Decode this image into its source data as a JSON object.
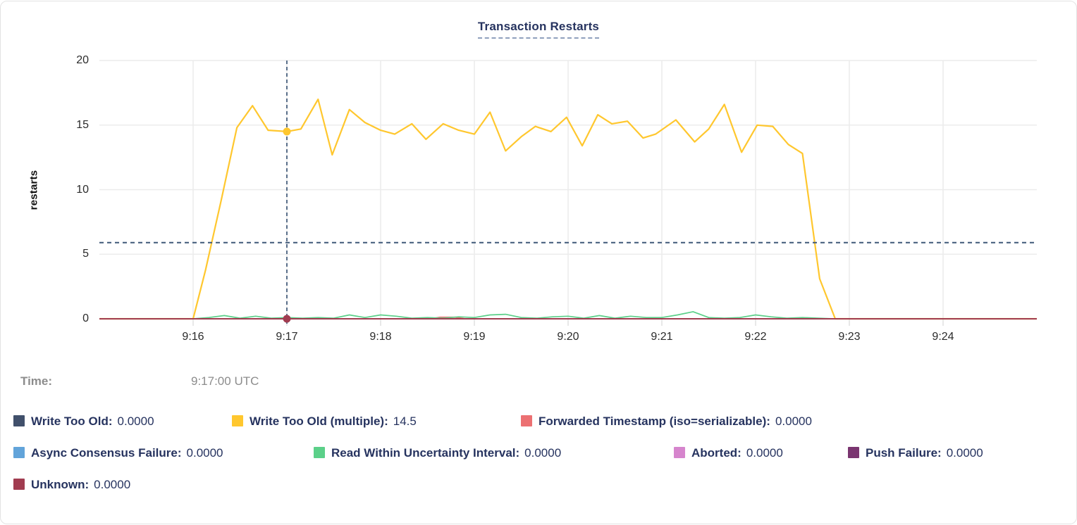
{
  "chart_data": {
    "type": "line",
    "title": "Transaction Restarts",
    "ylabel": "restarts",
    "ylim": [
      0,
      20
    ],
    "yticks": [
      0,
      5,
      10,
      15,
      20
    ],
    "x_domain": {
      "start": "9:15:00",
      "end": "9:25:00",
      "seconds": 600
    },
    "xticks": [
      {
        "s": 60,
        "label": "9:16"
      },
      {
        "s": 120,
        "label": "9:17"
      },
      {
        "s": 180,
        "label": "9:18"
      },
      {
        "s": 240,
        "label": "9:19"
      },
      {
        "s": 300,
        "label": "9:20"
      },
      {
        "s": 360,
        "label": "9:21"
      },
      {
        "s": 420,
        "label": "9:22"
      },
      {
        "s": 480,
        "label": "9:23"
      },
      {
        "s": 540,
        "label": "9:24"
      }
    ],
    "grid": true,
    "legend_position": "bottom",
    "series": [
      {
        "name": "Write Too Old",
        "color": "#41506b",
        "value_label": "0.0000",
        "width": 1.5,
        "points": [
          [
            0,
            0
          ],
          [
            600,
            0
          ]
        ]
      },
      {
        "name": "Write Too Old (multiple)",
        "color": "#ffc72e",
        "value_label": "14.5",
        "width": 2.2,
        "points": [
          [
            0,
            0
          ],
          [
            60,
            0
          ],
          [
            68,
            3.8
          ],
          [
            78,
            9.2
          ],
          [
            88,
            14.8
          ],
          [
            98,
            16.5
          ],
          [
            108,
            14.6
          ],
          [
            120,
            14.5
          ],
          [
            129,
            14.7
          ],
          [
            140,
            17.0
          ],
          [
            149,
            12.7
          ],
          [
            160,
            16.2
          ],
          [
            170,
            15.2
          ],
          [
            180,
            14.6
          ],
          [
            189,
            14.3
          ],
          [
            200,
            15.1
          ],
          [
            209,
            13.9
          ],
          [
            220,
            15.1
          ],
          [
            230,
            14.6
          ],
          [
            240,
            14.3
          ],
          [
            250,
            16.0
          ],
          [
            260,
            13.0
          ],
          [
            270,
            14.1
          ],
          [
            279,
            14.9
          ],
          [
            289,
            14.5
          ],
          [
            299,
            15.6
          ],
          [
            309,
            13.4
          ],
          [
            319,
            15.8
          ],
          [
            328,
            15.1
          ],
          [
            338,
            15.3
          ],
          [
            348,
            14.0
          ],
          [
            356,
            14.3
          ],
          [
            369,
            15.4
          ],
          [
            381,
            13.7
          ],
          [
            390,
            14.7
          ],
          [
            400,
            16.6
          ],
          [
            411,
            12.9
          ],
          [
            421,
            15.0
          ],
          [
            431,
            14.9
          ],
          [
            441,
            13.5
          ],
          [
            450,
            12.8
          ],
          [
            461,
            3.1
          ],
          [
            471,
            0
          ],
          [
            600,
            0
          ]
        ]
      },
      {
        "name": "Forwarded Timestamp (iso=serializable)",
        "color": "#ec7072",
        "value_label": "0.0000",
        "width": 1.8,
        "points": [
          [
            0,
            0
          ],
          [
            212,
            0
          ],
          [
            218,
            0.12
          ],
          [
            228,
            0.12
          ],
          [
            234,
            0
          ],
          [
            600,
            0
          ]
        ]
      },
      {
        "name": "Async Consensus Failure",
        "color": "#62a4da",
        "value_label": "0.0000",
        "width": 1.5,
        "points": [
          [
            0,
            0
          ],
          [
            600,
            0
          ]
        ]
      },
      {
        "name": "Read Within Uncertainty Interval",
        "color": "#5bd089",
        "value_label": "0.0000",
        "width": 1.7,
        "points": [
          [
            0,
            0
          ],
          [
            60,
            0
          ],
          [
            70,
            0.1
          ],
          [
            80,
            0.25
          ],
          [
            90,
            0.05
          ],
          [
            100,
            0.2
          ],
          [
            110,
            0.05
          ],
          [
            120,
            0.1
          ],
          [
            130,
            0.05
          ],
          [
            140,
            0.1
          ],
          [
            150,
            0.05
          ],
          [
            160,
            0.3
          ],
          [
            170,
            0.1
          ],
          [
            180,
            0.3
          ],
          [
            190,
            0.2
          ],
          [
            200,
            0.05
          ],
          [
            210,
            0.1
          ],
          [
            220,
            0.05
          ],
          [
            230,
            0.15
          ],
          [
            240,
            0.1
          ],
          [
            250,
            0.3
          ],
          [
            260,
            0.35
          ],
          [
            270,
            0.1
          ],
          [
            280,
            0.05
          ],
          [
            290,
            0.15
          ],
          [
            300,
            0.2
          ],
          [
            310,
            0.05
          ],
          [
            320,
            0.25
          ],
          [
            330,
            0.05
          ],
          [
            340,
            0.2
          ],
          [
            350,
            0.1
          ],
          [
            360,
            0.1
          ],
          [
            370,
            0.3
          ],
          [
            380,
            0.55
          ],
          [
            390,
            0.1
          ],
          [
            400,
            0.05
          ],
          [
            410,
            0.1
          ],
          [
            420,
            0.3
          ],
          [
            430,
            0.15
          ],
          [
            440,
            0.05
          ],
          [
            450,
            0.1
          ],
          [
            460,
            0.05
          ],
          [
            470,
            0
          ],
          [
            600,
            0
          ]
        ]
      },
      {
        "name": "Aborted",
        "color": "#d685cd",
        "value_label": "0.0000",
        "width": 1.5,
        "points": [
          [
            0,
            0
          ],
          [
            600,
            0
          ]
        ]
      },
      {
        "name": "Push Failure",
        "color": "#7a3570",
        "value_label": "0.0000",
        "width": 1.5,
        "points": [
          [
            0,
            0
          ],
          [
            600,
            0
          ]
        ]
      },
      {
        "name": "Unknown",
        "color": "#a13c50",
        "value_label": "0.0000",
        "width": 2.0,
        "points": [
          [
            0,
            0
          ],
          [
            600,
            0
          ]
        ]
      }
    ],
    "hover": {
      "crosshair_time": "9:17:00",
      "crosshair_seconds": 120,
      "crosshair_horizontal_value": 5.9,
      "highlighted_points": [
        {
          "series": "Write Too Old (multiple)",
          "value": 14.5,
          "color": "#ffc72e"
        },
        {
          "series": "Unknown",
          "value": 0,
          "color": "#a13c50"
        }
      ]
    }
  },
  "time_panel": {
    "label": "Time:",
    "value": "9:17:00 UTC"
  },
  "colors": {
    "title_text": "#26335f",
    "legend_text": "#26335f",
    "grid_line": "#ececec",
    "crosshair": "#3f5878",
    "muted_text": "#8c8c8c"
  }
}
